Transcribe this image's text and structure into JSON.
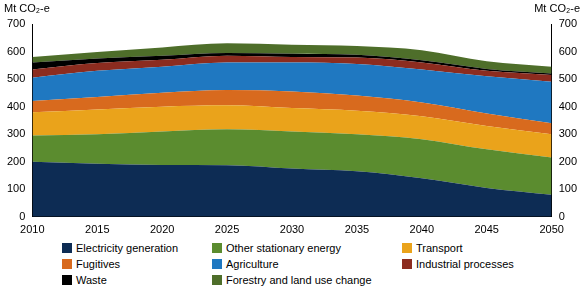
{
  "chart_data": {
    "type": "area",
    "stacked": true,
    "grid": false,
    "ylabel": "Mt CO₂-e",
    "y2label": "Mt CO₂-e",
    "x": [
      2010,
      2015,
      2020,
      2025,
      2030,
      2035,
      2040,
      2045,
      2050
    ],
    "xlim": [
      2010,
      2050
    ],
    "xticks": [
      2010,
      2015,
      2020,
      2025,
      2030,
      2035,
      2040,
      2045,
      2050
    ],
    "ylim": [
      0,
      700
    ],
    "yticks": [
      0,
      100,
      200,
      300,
      400,
      500,
      600,
      700
    ],
    "y2lim": [
      0,
      700
    ],
    "y2ticks": [
      0,
      100,
      200,
      300,
      400,
      500,
      600,
      700
    ],
    "series": [
      {
        "name": "Electricity generation",
        "color": "#0d2c54",
        "values": [
          200,
          193,
          188,
          187,
          175,
          165,
          140,
          105,
          80
        ]
      },
      {
        "name": "Other stationary energy",
        "color": "#5b8c2f",
        "values": [
          95,
          107,
          122,
          131,
          135,
          135,
          142,
          140,
          135
        ]
      },
      {
        "name": "Transport",
        "color": "#eaa31b",
        "values": [
          85,
          90,
          90,
          87,
          85,
          85,
          83,
          85,
          85
        ]
      },
      {
        "name": "Fugitives",
        "color": "#d86a1e",
        "values": [
          40,
          45,
          50,
          55,
          60,
          55,
          50,
          45,
          40
        ]
      },
      {
        "name": "Agriculture",
        "color": "#1f78c1",
        "values": [
          85,
          95,
          95,
          100,
          105,
          115,
          120,
          135,
          150
        ]
      },
      {
        "name": "Industrial processes",
        "color": "#8c2c1f",
        "values": [
          30,
          28,
          25,
          25,
          20,
          23,
          25,
          20,
          25
        ]
      },
      {
        "name": "Waste",
        "color": "#000000",
        "values": [
          25,
          17,
          15,
          10,
          12,
          10,
          8,
          7,
          5
        ]
      },
      {
        "name": "Forestry and land use change",
        "color": "#4e6e2a",
        "values": [
          20,
          23,
          30,
          35,
          33,
          32,
          37,
          28,
          25
        ]
      }
    ]
  }
}
